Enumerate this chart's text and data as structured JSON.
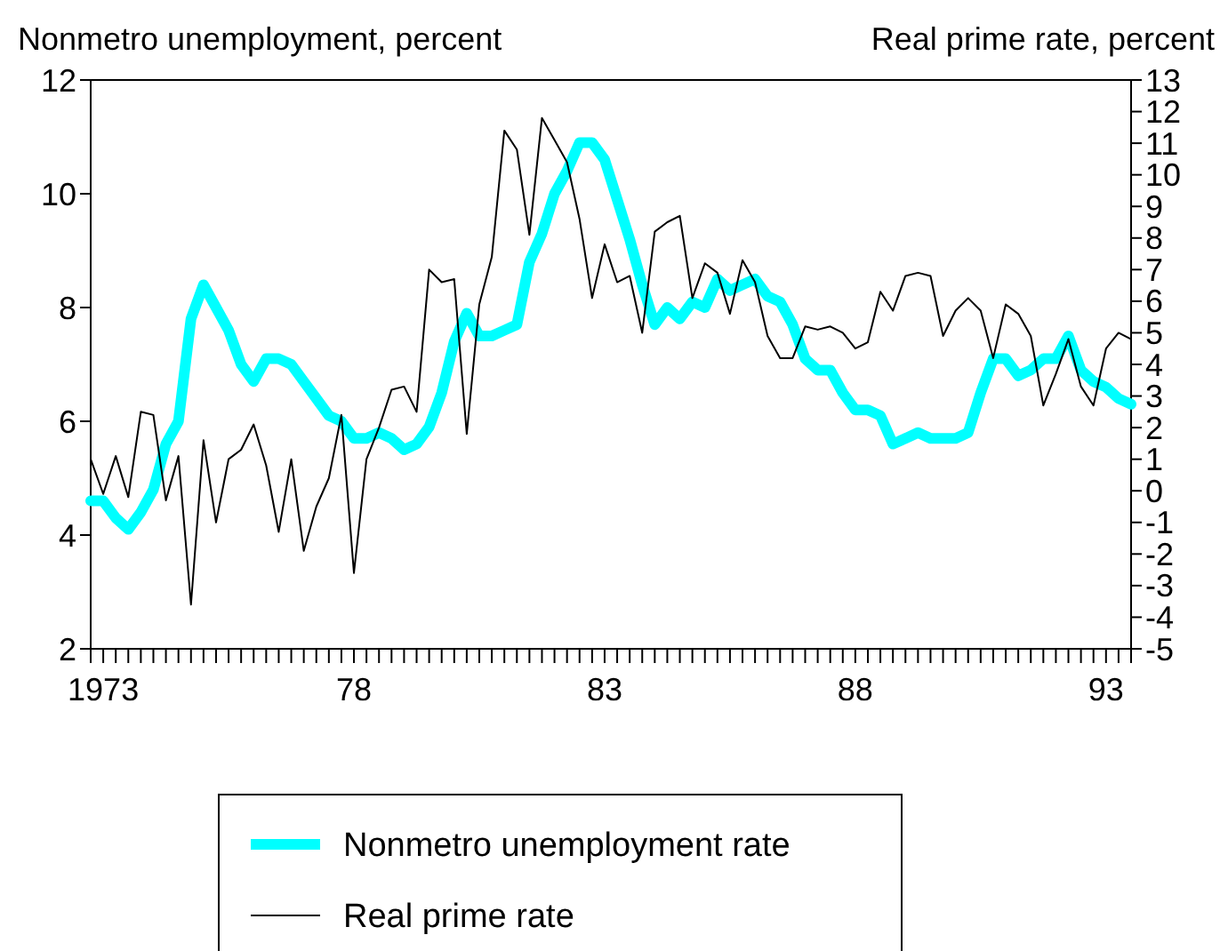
{
  "chart_data": {
    "type": "line",
    "ylabel": "Nonmetro unemployment, percent",
    "y2label": "Real prime rate, percent",
    "ylim": [
      2,
      12
    ],
    "yticks": [
      2,
      4,
      6,
      8,
      10,
      12
    ],
    "y2lim": [
      -5,
      13
    ],
    "y2ticks": [
      -5,
      -4,
      -3,
      -2,
      -1,
      0,
      1,
      2,
      3,
      4,
      5,
      6,
      7,
      8,
      9,
      10,
      11,
      12,
      13
    ],
    "categories": [
      null,
      "1973",
      null,
      null,
      null,
      null,
      null,
      null,
      null,
      null,
      null,
      null,
      null,
      null,
      null,
      null,
      null,
      null,
      null,
      null,
      null,
      "78",
      null,
      null,
      null,
      null,
      null,
      null,
      null,
      null,
      null,
      null,
      null,
      null,
      null,
      null,
      null,
      null,
      null,
      null,
      null,
      "83",
      null,
      null,
      null,
      null,
      null,
      null,
      null,
      null,
      null,
      null,
      null,
      null,
      null,
      null,
      null,
      null,
      null,
      null,
      null,
      "88",
      null,
      null,
      null,
      null,
      null,
      null,
      null,
      null,
      null,
      null,
      null,
      null,
      null,
      null,
      null,
      null,
      null,
      null,
      null,
      "93",
      null,
      null
    ],
    "legend": "bottom",
    "series": [
      {
        "name": "Nonmetro unemployment rate",
        "color": "#00ffff",
        "values": [
          4.6,
          4.6,
          4.3,
          4.1,
          4.4,
          4.8,
          5.6,
          6.0,
          7.8,
          8.4,
          8.0,
          7.6,
          7.0,
          6.7,
          7.1,
          7.1,
          7.0,
          6.7,
          6.4,
          6.1,
          6.0,
          5.7,
          5.7,
          5.8,
          5.7,
          5.5,
          5.6,
          5.9,
          6.5,
          7.4,
          7.9,
          7.5,
          7.5,
          7.6,
          7.7,
          8.8,
          9.3,
          10.0,
          10.4,
          10.9,
          10.9,
          10.6,
          9.9,
          9.2,
          8.4,
          7.7,
          8.0,
          7.8,
          8.1,
          8.0,
          8.5,
          8.3,
          8.4,
          8.5,
          8.2,
          8.1,
          7.7,
          7.1,
          6.9,
          6.9,
          6.5,
          6.2,
          6.2,
          6.1,
          5.6,
          5.7,
          5.8,
          5.7,
          5.7,
          5.7,
          5.8,
          6.5,
          7.1,
          7.1,
          6.8,
          6.9,
          7.1,
          7.1,
          7.5,
          6.9,
          6.7,
          6.6,
          6.4,
          6.3
        ]
      },
      {
        "name": "Real prime rate",
        "color": "#000000",
        "axis": "y2",
        "values": [
          1.0,
          -0.1,
          1.1,
          -0.2,
          2.5,
          2.4,
          -0.3,
          1.1,
          -3.6,
          1.6,
          -1.0,
          1.0,
          1.3,
          2.1,
          0.8,
          -1.3,
          1.0,
          -1.9,
          -0.5,
          0.4,
          2.4,
          -2.6,
          1.0,
          2.0,
          3.2,
          3.3,
          2.5,
          7.0,
          6.6,
          6.7,
          1.8,
          5.9,
          7.4,
          11.4,
          10.8,
          8.1,
          11.8,
          11.1,
          10.4,
          8.6,
          6.1,
          7.8,
          6.6,
          6.8,
          5.0,
          8.2,
          8.5,
          8.7,
          6.1,
          7.2,
          6.9,
          5.6,
          7.3,
          6.6,
          4.9,
          4.2,
          4.2,
          5.2,
          5.1,
          5.2,
          5.0,
          4.5,
          4.7,
          6.3,
          5.7,
          6.8,
          6.9,
          6.8,
          4.9,
          5.7,
          6.1,
          5.7,
          4.2,
          5.9,
          5.6,
          4.9,
          2.7,
          3.7,
          4.8,
          3.3,
          2.7,
          4.5,
          5.0,
          4.8
        ]
      }
    ]
  }
}
